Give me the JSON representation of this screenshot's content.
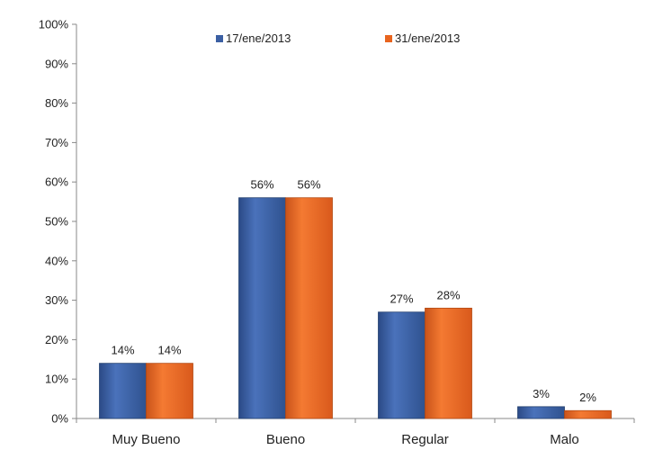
{
  "chart_data": {
    "type": "bar",
    "categories": [
      "Muy Bueno",
      "Bueno",
      "Regular",
      "Malo"
    ],
    "series": [
      {
        "name": "17/ene/2013",
        "values": [
          14,
          56,
          27,
          3
        ],
        "labels": [
          "14%",
          "56%",
          "27%",
          "3%"
        ],
        "color": "#3b5fa3"
      },
      {
        "name": "31/ene/2013",
        "values": [
          14,
          56,
          28,
          2
        ],
        "labels": [
          "14%",
          "56%",
          "28%",
          "2%"
        ],
        "color": "#e8641e"
      }
    ],
    "ylim": [
      0,
      100
    ],
    "yticks": [
      "0%",
      "10%",
      "20%",
      "30%",
      "40%",
      "50%",
      "60%",
      "70%",
      "80%",
      "90%",
      "100%"
    ],
    "legend_position": "top-center",
    "grid": false
  }
}
